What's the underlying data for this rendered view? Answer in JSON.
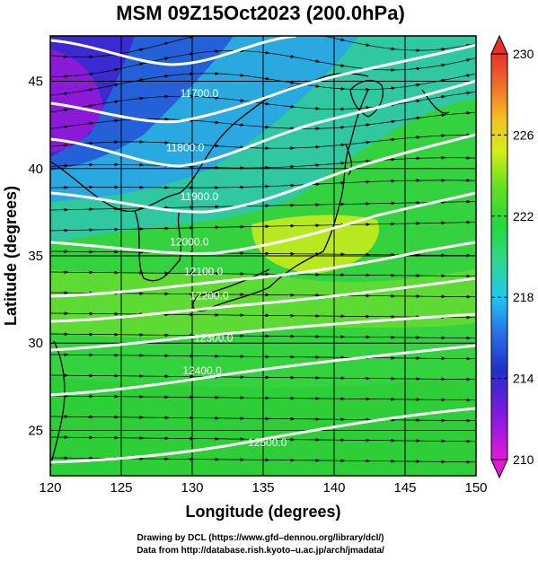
{
  "title": "MSM 09Z15Oct2023 (200.0hPa)",
  "xaxis": {
    "label": "Longitude (degrees)",
    "range": [
      120,
      150
    ],
    "ticks": [
      120,
      125,
      130,
      135,
      140,
      145,
      150
    ],
    "tick_labels": [
      "120",
      "125",
      "130",
      "135",
      "140",
      "145",
      "150"
    ]
  },
  "yaxis": {
    "label": "Latitude  (degrees)",
    "range": [
      22.4,
      47.6
    ],
    "ticks": [
      25,
      30,
      35,
      40,
      45
    ],
    "tick_labels": [
      "25",
      "30",
      "35",
      "40",
      "45"
    ]
  },
  "colorbar": {
    "range": [
      210,
      230
    ],
    "tick_labels": [
      "230",
      "226",
      "222",
      "218",
      "214",
      "210"
    ],
    "tick_values": [
      230,
      226,
      222,
      218,
      214,
      210
    ]
  },
  "contours": [
    {
      "label": "11700.0",
      "lon": 130.5,
      "lat": 44.1
    },
    {
      "label": "11800.0",
      "lon": 129.5,
      "lat": 41.0
    },
    {
      "label": "11900.0",
      "lon": 130.5,
      "lat": 38.2
    },
    {
      "label": "12000.0",
      "lon": 129.8,
      "lat": 35.6
    },
    {
      "label": "12100.0",
      "lon": 130.8,
      "lat": 33.9
    },
    {
      "label": "12200.0",
      "lon": 131.2,
      "lat": 32.5
    },
    {
      "label": "12300.0",
      "lon": 131.5,
      "lat": 30.1
    },
    {
      "label": "12400.0",
      "lon": 130.7,
      "lat": 28.2
    },
    {
      "label": "12500.0",
      "lon": 135.3,
      "lat": 24.1
    }
  ],
  "credits": {
    "line1": "Drawing by DCL (https://www.gfd–dennou.org/library/dcl/)",
    "line2": "Data from http://database.rish.kyoto–u.ac.jp/arch/jmadata/"
  }
}
